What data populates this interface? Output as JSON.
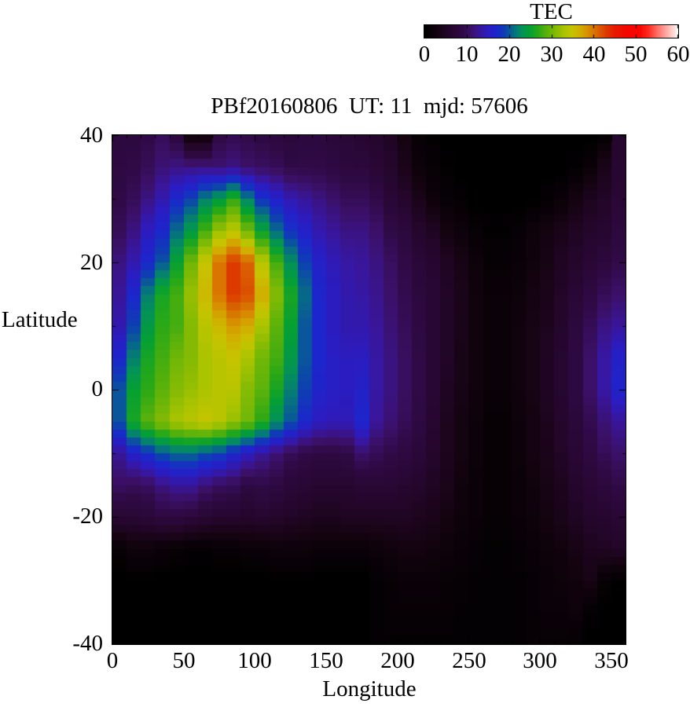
{
  "figure": {
    "title": "PBf20160806  UT: 11  mjd: 57606",
    "xlabel": "Longitude",
    "ylabel": "Latitude",
    "x_tick_labels": [
      "0",
      "50",
      "100",
      "150",
      "200",
      "250",
      "300",
      "350"
    ],
    "y_tick_labels": [
      "40",
      "20",
      "0",
      "-20",
      "-40"
    ]
  },
  "colorbar": {
    "title": "TEC",
    "min": 0,
    "max": 60,
    "tick_labels": [
      "0",
      "10",
      "20",
      "30",
      "40",
      "50",
      "60"
    ],
    "palette_stops": [
      [
        0,
        "#000000"
      ],
      [
        3,
        "#140310"
      ],
      [
        6,
        "#25062c"
      ],
      [
        9,
        "#2f0a46"
      ],
      [
        11,
        "#3b1068"
      ],
      [
        13,
        "#39169a"
      ],
      [
        15,
        "#2b1cc0"
      ],
      [
        17,
        "#1c26cc"
      ],
      [
        19,
        "#0d3fb2"
      ],
      [
        21,
        "#076c86"
      ],
      [
        23,
        "#03915a"
      ],
      [
        25,
        "#05a032"
      ],
      [
        27,
        "#2ba816"
      ],
      [
        29,
        "#5cb20a"
      ],
      [
        31,
        "#84ba04"
      ],
      [
        33,
        "#aac400"
      ],
      [
        35,
        "#c6c400"
      ],
      [
        37,
        "#d2ac00"
      ],
      [
        39,
        "#d88800"
      ],
      [
        41,
        "#d96200"
      ],
      [
        43,
        "#dd3a00"
      ],
      [
        45,
        "#e61c00"
      ],
      [
        48,
        "#f30800"
      ],
      [
        51,
        "#fb0400"
      ],
      [
        53,
        "#ff2a20"
      ],
      [
        55,
        "#ff6a60"
      ],
      [
        57,
        "#ffa29c"
      ],
      [
        59,
        "#ffd8d6"
      ],
      [
        60,
        "#ffffff"
      ]
    ]
  },
  "chart_data": {
    "type": "heatmap",
    "title": "PBf20160806  UT: 11  mjd: 57606",
    "xlabel": "Longitude",
    "ylabel": "Latitude",
    "colorbar_title": "TEC",
    "xlim": [
      0,
      360
    ],
    "ylim": [
      -40,
      40
    ],
    "zlim": [
      0,
      60
    ],
    "x_ticks": [
      0,
      50,
      100,
      150,
      200,
      250,
      300,
      350
    ],
    "y_ticks": [
      40,
      20,
      0,
      -20,
      -40
    ],
    "lon_cell_deg": 10,
    "lat_band_deg": 1.25,
    "lons": [
      0,
      10,
      20,
      30,
      40,
      50,
      60,
      70,
      80,
      90,
      100,
      110,
      120,
      130,
      140,
      150,
      160,
      170,
      180,
      190,
      200,
      210,
      220,
      230,
      240,
      250,
      260,
      270,
      280,
      290,
      300,
      310,
      320,
      330,
      340,
      350
    ],
    "lats": [
      40,
      35,
      30,
      25,
      20,
      15,
      10,
      5,
      0,
      -5,
      -10,
      -15,
      -20,
      -25,
      -30,
      -35,
      -40
    ],
    "values": [
      [
        8,
        8,
        9,
        10,
        8,
        2,
        2,
        8.5,
        9.5,
        9,
        8.5,
        8,
        7.5,
        8,
        8,
        7.5,
        7,
        6.5,
        6,
        5,
        3,
        1,
        0.5,
        0,
        0,
        0,
        0,
        0,
        0,
        0,
        0,
        0,
        0,
        0,
        0.5,
        6
      ],
      [
        8.5,
        9,
        10,
        11.5,
        12,
        12,
        12,
        11.5,
        12,
        11,
        10.5,
        10,
        9,
        9,
        9,
        8.5,
        8,
        8,
        7,
        6,
        4,
        2,
        1,
        0.5,
        0,
        0,
        0,
        0,
        0,
        0,
        0,
        0,
        0.5,
        1.5,
        4,
        6.5
      ],
      [
        9,
        10,
        12,
        14,
        17,
        19,
        22,
        24,
        27,
        22,
        18,
        16,
        14,
        13,
        12,
        11,
        10,
        10,
        9,
        7,
        6,
        4,
        2,
        1,
        0.5,
        0,
        0,
        0,
        0,
        0,
        0.5,
        1.5,
        3,
        4.5,
        5.5,
        7
      ],
      [
        10,
        12,
        15,
        17,
        21,
        24,
        28,
        32,
        34,
        30,
        25,
        21,
        18,
        16,
        14,
        13,
        12,
        12,
        11,
        9,
        8,
        6,
        5,
        3,
        2,
        1,
        0.5,
        0.5,
        1,
        2,
        3,
        4,
        5,
        6,
        6.5,
        8
      ],
      [
        12,
        14,
        17,
        20,
        25,
        30,
        35,
        40,
        43,
        41,
        34,
        28,
        23,
        19,
        16,
        14.5,
        13.5,
        13,
        12,
        10.5,
        9,
        7.5,
        6.5,
        5,
        3.5,
        2,
        1,
        1,
        1.5,
        2.5,
        3.5,
        5,
        6,
        7,
        8,
        9
      ],
      [
        13,
        17,
        22,
        26,
        28,
        32,
        36,
        40,
        43,
        42,
        37,
        31,
        26,
        21,
        17,
        15,
        14,
        13.5,
        12.5,
        11,
        9.5,
        8,
        7,
        5.5,
        4,
        2.5,
        1.5,
        1.5,
        2,
        3,
        4,
        5.5,
        7,
        8.5,
        10,
        11
      ],
      [
        14,
        19,
        24,
        27,
        28,
        31,
        34,
        36,
        38,
        37,
        33,
        29,
        25,
        20,
        17,
        15,
        14,
        14,
        13,
        11.5,
        10,
        8.5,
        7,
        5.5,
        4,
        2.5,
        1.5,
        1.5,
        2.5,
        3.5,
        4.5,
        6,
        8,
        10,
        12,
        13
      ],
      [
        17,
        22,
        26,
        28,
        30,
        31,
        33,
        34,
        35,
        33,
        30,
        28,
        24,
        20,
        17,
        15.5,
        15,
        15,
        13.5,
        12,
        10.5,
        9,
        7,
        5.5,
        3.5,
        2.5,
        1.5,
        1.5,
        2.5,
        3.5,
        5,
        6.5,
        8.5,
        11,
        13.5,
        16
      ],
      [
        20,
        25,
        27,
        29,
        31,
        32,
        33,
        34,
        34,
        31,
        29,
        26,
        22,
        19,
        16.5,
        15.5,
        15,
        16,
        13.5,
        12,
        10.5,
        9,
        7,
        5,
        3.5,
        2.5,
        1.5,
        1.5,
        2.5,
        3.5,
        5,
        6.5,
        8.5,
        11,
        13.5,
        16.5
      ],
      [
        20,
        26,
        29,
        31,
        33,
        34,
        35,
        34,
        32,
        30,
        27,
        23,
        20,
        17,
        15,
        14.5,
        14.5,
        17,
        13,
        11.5,
        10,
        8.5,
        6.5,
        4.5,
        3,
        2,
        1,
        1,
        2,
        3,
        4.5,
        6,
        7.5,
        9.5,
        11.5,
        13
      ],
      [
        13,
        16,
        18,
        20,
        21,
        21,
        20,
        19,
        17,
        15,
        13,
        11.5,
        10,
        9,
        8.5,
        8.5,
        9,
        11,
        10,
        9,
        8.5,
        7.5,
        6,
        4.5,
        3,
        2,
        1,
        1,
        2,
        3,
        4,
        5.5,
        7,
        8.5,
        10,
        11
      ],
      [
        10.5,
        10,
        10.5,
        12,
        13,
        13,
        11.5,
        10.5,
        10,
        8.5,
        9,
        8.5,
        7.5,
        7,
        6.5,
        6.5,
        6.5,
        7,
        7,
        7,
        6.5,
        6,
        5,
        4,
        2.5,
        1.5,
        1,
        1,
        1.5,
        2.5,
        3.5,
        4.5,
        6,
        7,
        8,
        9
      ],
      [
        7,
        7,
        7.5,
        8.5,
        8.5,
        8,
        7,
        6.5,
        6.5,
        6,
        6.5,
        6,
        5.5,
        5,
        4.5,
        4.5,
        5,
        5,
        5,
        5,
        5,
        4.5,
        4,
        3,
        2,
        1.5,
        1,
        1,
        1.5,
        2,
        3,
        4,
        5,
        6,
        6.5,
        7
      ],
      [
        1,
        2,
        2,
        1.5,
        1,
        0.5,
        0.5,
        1,
        1,
        1.5,
        1.5,
        2,
        2,
        2,
        1.5,
        1.5,
        1.5,
        1.5,
        2,
        2.5,
        3,
        3,
        2.5,
        2,
        1.5,
        1,
        0.5,
        0.5,
        1,
        1.5,
        2,
        2.5,
        3.5,
        4.5,
        5,
        5.5
      ],
      [
        0,
        0,
        0,
        0,
        0,
        0,
        0,
        0,
        0,
        0,
        0,
        0,
        0,
        0,
        0,
        0,
        0,
        0,
        0.5,
        1,
        1.5,
        1.5,
        1.5,
        1,
        1,
        0.5,
        0.5,
        0.5,
        0.5,
        1,
        1.5,
        2,
        2.5,
        3.5,
        1,
        0
      ],
      [
        0,
        0,
        0,
        0,
        0,
        0,
        0,
        0,
        0,
        0,
        0,
        0,
        0,
        0,
        0,
        0,
        0,
        0,
        0.5,
        1,
        1,
        1,
        1,
        1,
        0.5,
        0.5,
        0.5,
        0.5,
        0.5,
        1,
        1.5,
        1.5,
        2,
        0.5,
        0,
        0
      ],
      [
        0,
        0,
        0,
        0,
        0,
        0,
        0,
        0,
        0,
        0,
        0,
        0,
        0,
        0,
        0,
        0,
        0,
        0,
        0.5,
        0.5,
        0.5,
        0.5,
        0.5,
        0.5,
        0.5,
        0.5,
        0.5,
        0.5,
        0.5,
        1,
        1,
        1,
        0.5,
        0,
        0,
        0
      ]
    ]
  }
}
